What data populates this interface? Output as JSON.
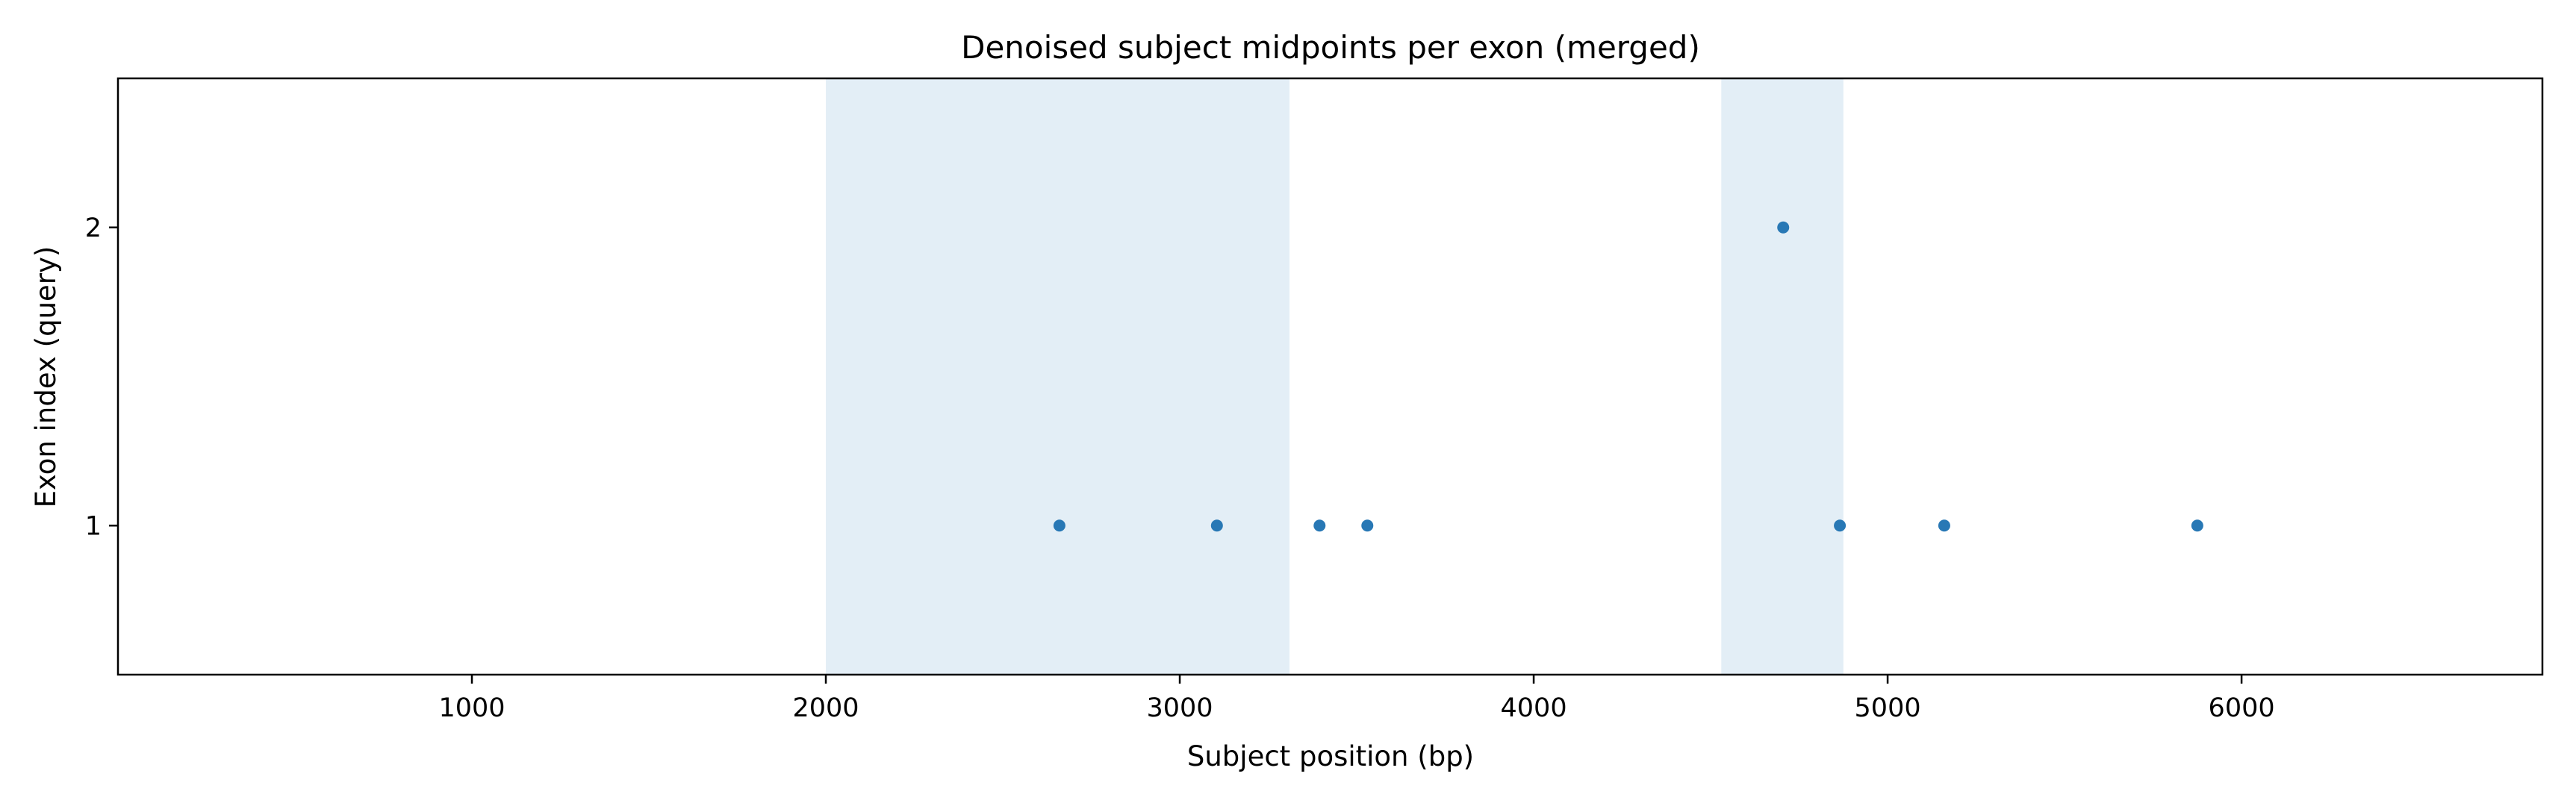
{
  "chart_data": {
    "type": "scatter",
    "title": "Denoised subject midpoints per exon (merged)",
    "xlabel": "Subject position (bp)",
    "ylabel": "Exon index (query)",
    "xlim": [
      0,
      6850
    ],
    "ylim": [
      0.5,
      2.5
    ],
    "xticks": [
      1000,
      2000,
      3000,
      4000,
      5000,
      6000
    ],
    "yticks": [
      1,
      2
    ],
    "grid": false,
    "legend": "none",
    "shaded_regions": [
      {
        "x_start": 2000,
        "x_end": 3310
      },
      {
        "x_start": 4530,
        "x_end": 4875
      }
    ],
    "points": [
      {
        "x": 2660,
        "y": 1
      },
      {
        "x": 3105,
        "y": 1
      },
      {
        "x": 3395,
        "y": 1
      },
      {
        "x": 3530,
        "y": 1
      },
      {
        "x": 4705,
        "y": 2
      },
      {
        "x": 4865,
        "y": 1
      },
      {
        "x": 5160,
        "y": 1
      },
      {
        "x": 5875,
        "y": 1
      }
    ],
    "colors": {
      "point": "#2878b5",
      "shade": "#e3eef6",
      "axis": "#000000"
    }
  }
}
